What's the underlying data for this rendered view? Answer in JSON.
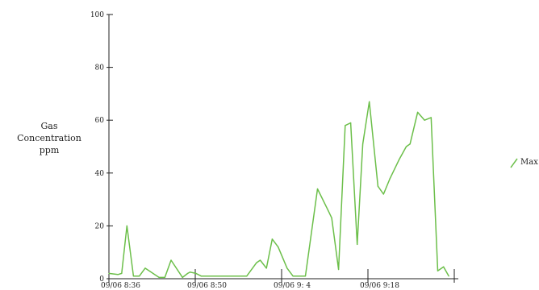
{
  "chart_data": {
    "type": "line",
    "ylabel": [
      "Gas",
      "Concentration",
      "ppm"
    ],
    "ylim": [
      0,
      100
    ],
    "yticks": [
      0,
      20,
      40,
      60,
      80,
      100
    ],
    "xlim": [
      0,
      100
    ],
    "xticks": [
      {
        "value": 0,
        "label": "09/06  8:36"
      },
      {
        "value": 25,
        "label": "09/06  8:50"
      },
      {
        "value": 50,
        "label": "09/06  9: 4"
      },
      {
        "value": 75,
        "label": "09/06  9:18"
      },
      {
        "value": 100,
        "label": ""
      }
    ],
    "grid": false,
    "legend": {
      "position": "right",
      "entries": [
        "Max"
      ]
    },
    "series": [
      {
        "name": "Max",
        "color": "#6cbf4a",
        "points": [
          [
            0,
            2
          ],
          [
            2.6,
            1.6
          ],
          [
            3.7,
            2
          ],
          [
            5.2,
            20
          ],
          [
            7.1,
            1
          ],
          [
            8.8,
            1
          ],
          [
            10.5,
            4
          ],
          [
            14.5,
            0.5
          ],
          [
            16.2,
            0.5
          ],
          [
            18,
            7
          ],
          [
            21.3,
            0.5
          ],
          [
            22.8,
            2
          ],
          [
            23.5,
            2.5
          ],
          [
            25.2,
            2
          ],
          [
            26.7,
            1
          ],
          [
            30.5,
            1
          ],
          [
            34.4,
            1
          ],
          [
            39.9,
            1
          ],
          [
            42.7,
            6
          ],
          [
            43.8,
            7
          ],
          [
            45.6,
            4
          ],
          [
            47.3,
            15
          ],
          [
            49,
            12
          ],
          [
            51.6,
            4
          ],
          [
            53.3,
            1
          ],
          [
            56.9,
            1
          ],
          [
            60.4,
            34
          ],
          [
            63.4,
            26
          ],
          [
            64.5,
            23
          ],
          [
            66.5,
            3.5
          ],
          [
            68.4,
            58
          ],
          [
            70,
            59
          ],
          [
            71.9,
            13
          ],
          [
            73.5,
            51
          ],
          [
            75.4,
            67
          ],
          [
            77.9,
            35
          ],
          [
            79.5,
            32
          ],
          [
            81.4,
            38
          ],
          [
            84,
            45
          ],
          [
            86.1,
            50
          ],
          [
            87.2,
            51
          ],
          [
            89.4,
            63
          ],
          [
            91.4,
            60
          ],
          [
            93.3,
            61
          ],
          [
            95.2,
            3
          ],
          [
            96.9,
            4.5
          ],
          [
            98.4,
            1
          ]
        ]
      }
    ]
  }
}
